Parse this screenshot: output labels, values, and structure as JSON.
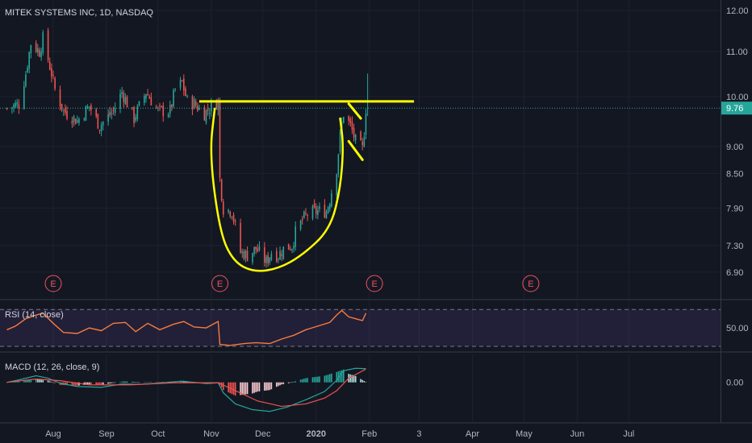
{
  "chart_data": [
    {
      "type": "candlestick",
      "title": "MITEK SYSTEMS INC, 1D, NASDAQ",
      "y_scale": "log",
      "ylim": [
        6.6,
        12.1
      ],
      "y_ticks": [
        "12.00",
        "11.00",
        "10.00",
        "9.00",
        "8.50",
        "7.90",
        "7.30",
        "6.90"
      ],
      "last_price": "9.76",
      "x_labels": [
        "Aug",
        "Sep",
        "Oct",
        "Nov",
        "Dec",
        "2020",
        "Feb",
        "3",
        "Apr",
        "May",
        "Jun",
        "Jul"
      ],
      "earnings_markers": [
        {
          "label": "E",
          "date": "2019-08-01"
        },
        {
          "label": "E",
          "date": "2019-11-06"
        },
        {
          "label": "E",
          "date": "2020-02-04"
        },
        {
          "label": "E",
          "date": "2020-05-05"
        }
      ],
      "price_path": [
        [
          "2019-07-05",
          9.75
        ],
        [
          "2019-07-12",
          9.85
        ],
        [
          "2019-07-16",
          10.5
        ],
        [
          "2019-07-19",
          11.2
        ],
        [
          "2019-07-24",
          11.0
        ],
        [
          "2019-07-26",
          11.3
        ],
        [
          "2019-07-31",
          10.5
        ],
        [
          "2019-08-02",
          10.15
        ],
        [
          "2019-08-07",
          9.7
        ],
        [
          "2019-08-15",
          9.5
        ],
        [
          "2019-08-22",
          9.8
        ],
        [
          "2019-08-28",
          9.4
        ],
        [
          "2019-09-05",
          9.7
        ],
        [
          "2019-09-10",
          10.1
        ],
        [
          "2019-09-17",
          9.55
        ],
        [
          "2019-09-24",
          10.1
        ],
        [
          "2019-10-01",
          9.7
        ],
        [
          "2019-10-08",
          9.7
        ],
        [
          "2019-10-11",
          10.15
        ],
        [
          "2019-10-15",
          10.3
        ],
        [
          "2019-10-18",
          9.9
        ],
        [
          "2019-10-22",
          9.85
        ],
        [
          "2019-10-28",
          9.65
        ],
        [
          "2019-11-01",
          9.8
        ],
        [
          "2019-11-05",
          9.9
        ],
        [
          "2019-11-06",
          8.4
        ],
        [
          "2019-11-08",
          7.9
        ],
        [
          "2019-11-13",
          7.85
        ],
        [
          "2019-11-18",
          7.2
        ],
        [
          "2019-11-22",
          7.15
        ],
        [
          "2019-11-27",
          7.25
        ],
        [
          "2019-12-03",
          7.05
        ],
        [
          "2019-12-06",
          7.2
        ],
        [
          "2019-12-10",
          7.15
        ],
        [
          "2019-12-13",
          7.25
        ],
        [
          "2019-12-18",
          7.3
        ],
        [
          "2019-12-20",
          7.5
        ],
        [
          "2019-12-24",
          7.7
        ],
        [
          "2019-12-27",
          7.8
        ],
        [
          "2020-01-02",
          7.85
        ],
        [
          "2020-01-07",
          7.85
        ],
        [
          "2020-01-09",
          8.05
        ],
        [
          "2020-01-13",
          8.6
        ],
        [
          "2020-01-15",
          9.2
        ],
        [
          "2020-01-17",
          9.65
        ],
        [
          "2020-01-21",
          9.4
        ],
        [
          "2020-01-24",
          9.1
        ],
        [
          "2020-01-28",
          8.95
        ],
        [
          "2020-01-29",
          9.3
        ],
        [
          "2020-01-30",
          9.76
        ]
      ],
      "price_high": [
        "2020-01-31",
        10.5
      ],
      "annotations": {
        "resistance_line_price": 9.9,
        "resistance_line_dates": [
          "2019-10-25",
          "2020-02-27"
        ],
        "cup": [
          [
            "2019-11-03",
            9.75
          ],
          [
            "2019-10-31",
            8.85
          ],
          [
            "2019-11-06",
            7.5
          ],
          [
            "2019-11-14",
            7.05
          ],
          [
            "2019-11-26",
            6.9
          ],
          [
            "2019-12-10",
            6.95
          ],
          [
            "2019-12-24",
            7.15
          ],
          [
            "2020-01-09",
            7.55
          ],
          [
            "2020-01-15",
            8.2
          ],
          [
            "2020-01-17",
            9.0
          ],
          [
            "2020-01-15",
            9.55
          ]
        ],
        "handle_upper": [
          [
            "2020-01-20",
            9.85
          ],
          [
            "2020-01-27",
            9.55
          ]
        ],
        "handle_lower": [
          [
            "2020-01-20",
            9.1
          ],
          [
            "2020-01-28",
            8.75
          ]
        ]
      }
    },
    {
      "type": "line",
      "title": "RSI (14, close)",
      "ylim": [
        30,
        72
      ],
      "y_ticks": [
        "50.00"
      ],
      "bands": [
        30,
        70
      ],
      "values": [
        [
          "2019-07-05",
          48
        ],
        [
          "2019-07-10",
          52
        ],
        [
          "2019-07-16",
          60
        ],
        [
          "2019-07-22",
          64
        ],
        [
          "2019-07-26",
          66
        ],
        [
          "2019-08-01",
          55
        ],
        [
          "2019-08-07",
          45
        ],
        [
          "2019-08-15",
          44
        ],
        [
          "2019-08-22",
          50
        ],
        [
          "2019-08-29",
          47
        ],
        [
          "2019-09-05",
          55
        ],
        [
          "2019-09-12",
          56
        ],
        [
          "2019-09-18",
          46
        ],
        [
          "2019-09-25",
          55
        ],
        [
          "2019-10-02",
          48
        ],
        [
          "2019-10-10",
          54
        ],
        [
          "2019-10-16",
          57
        ],
        [
          "2019-10-22",
          51
        ],
        [
          "2019-10-29",
          50
        ],
        [
          "2019-11-05",
          57
        ],
        [
          "2019-11-06",
          32
        ],
        [
          "2019-11-12",
          31
        ],
        [
          "2019-11-20",
          33
        ],
        [
          "2019-11-27",
          34
        ],
        [
          "2019-12-05",
          33
        ],
        [
          "2019-12-12",
          38
        ],
        [
          "2019-12-19",
          42
        ],
        [
          "2019-12-26",
          48
        ],
        [
          "2020-01-02",
          52
        ],
        [
          "2020-01-09",
          56
        ],
        [
          "2020-01-13",
          64
        ],
        [
          "2020-01-16",
          69
        ],
        [
          "2020-01-20",
          62
        ],
        [
          "2020-01-24",
          60
        ],
        [
          "2020-01-28",
          58
        ],
        [
          "2020-01-30",
          66
        ]
      ]
    },
    {
      "type": "macd",
      "title": "MACD (12, 26, close, 9)",
      "y_ticks": [
        "0.00"
      ],
      "ylim": [
        -0.9,
        0.5
      ],
      "macd": [
        [
          "2019-07-05",
          0.0
        ],
        [
          "2019-07-12",
          0.06
        ],
        [
          "2019-07-22",
          0.16
        ],
        [
          "2019-07-29",
          0.1
        ],
        [
          "2019-08-05",
          -0.02
        ],
        [
          "2019-08-15",
          -0.1
        ],
        [
          "2019-08-29",
          -0.12
        ],
        [
          "2019-09-10",
          -0.04
        ],
        [
          "2019-09-20",
          -0.05
        ],
        [
          "2019-10-01",
          -0.02
        ],
        [
          "2019-10-15",
          0.03
        ],
        [
          "2019-10-29",
          -0.03
        ],
        [
          "2019-11-05",
          -0.01
        ],
        [
          "2019-11-08",
          -0.25
        ],
        [
          "2019-11-15",
          -0.52
        ],
        [
          "2019-11-25",
          -0.66
        ],
        [
          "2019-12-05",
          -0.7
        ],
        [
          "2019-12-15",
          -0.6
        ],
        [
          "2019-12-26",
          -0.42
        ],
        [
          "2020-01-06",
          -0.22
        ],
        [
          "2020-01-13",
          0.05
        ],
        [
          "2020-01-17",
          0.28
        ],
        [
          "2020-01-24",
          0.34
        ],
        [
          "2020-01-30",
          0.33
        ]
      ],
      "signal": [
        [
          "2019-07-05",
          0.0
        ],
        [
          "2019-07-22",
          0.08
        ],
        [
          "2019-08-05",
          0.04
        ],
        [
          "2019-08-22",
          -0.06
        ],
        [
          "2019-09-15",
          -0.06
        ],
        [
          "2019-10-10",
          -0.01
        ],
        [
          "2019-11-05",
          -0.01
        ],
        [
          "2019-11-15",
          -0.2
        ],
        [
          "2019-11-28",
          -0.45
        ],
        [
          "2019-12-12",
          -0.58
        ],
        [
          "2019-12-26",
          -0.52
        ],
        [
          "2020-01-06",
          -0.38
        ],
        [
          "2020-01-13",
          -0.2
        ],
        [
          "2020-01-20",
          0.1
        ],
        [
          "2020-01-30",
          0.32
        ]
      ]
    }
  ]
}
